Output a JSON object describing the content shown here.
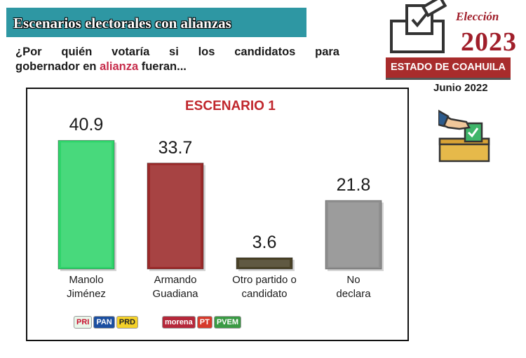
{
  "header": {
    "title": "Escenarios electorales con alianzas",
    "question_line1": [
      "¿Por",
      "quién",
      "votaría",
      "si",
      "los",
      "candidatos",
      "para"
    ],
    "question_line2_before": "gobernador en ",
    "question_line2_highlight": "alianza",
    "question_line2_after": " fueran..."
  },
  "logo": {
    "word": "Elección",
    "year": "2023",
    "state": "ESTADO DE COAHUILA",
    "date": "Junio 2022"
  },
  "parties": {
    "manolo": [
      "PRI",
      "PAN",
      "PRD"
    ],
    "armando": [
      "morena",
      "PT",
      "PVEM"
    ]
  },
  "colors": {
    "banner": "#2e97a3",
    "accent_red": "#c62b4a",
    "logo_red": "#a01e2a"
  },
  "chart_data": {
    "type": "bar",
    "title": "ESCENARIO 1",
    "categories": [
      [
        "Manolo",
        "Jiménez"
      ],
      [
        "Armando",
        "Guadiana"
      ],
      [
        "Otro partido o",
        "candidato"
      ],
      [
        "No",
        "declara"
      ]
    ],
    "values": [
      40.9,
      33.7,
      3.6,
      21.8
    ],
    "value_labels": [
      "40.9",
      "33.7",
      "3.6",
      "21.8"
    ],
    "bar_colors": [
      "#2fd46a",
      "#9b2a2a",
      "#4a4228",
      "#8f8f8f"
    ],
    "ylim": [
      0,
      45
    ],
    "xlabel": "",
    "ylabel": "",
    "grid": false,
    "legend": "none"
  }
}
